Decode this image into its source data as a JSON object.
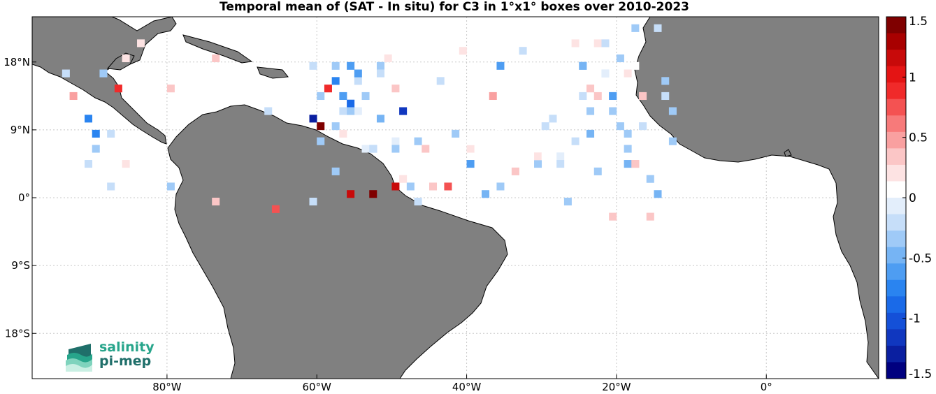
{
  "title": "Temporal mean of (SAT - In situ) for C3 in 1°x1° boxes over 2010-2023",
  "map": {
    "lon_range": [
      -98,
      15
    ],
    "lat_range": [
      -24,
      24
    ],
    "x_ticks": [
      {
        "value": -80,
        "label": "80°W"
      },
      {
        "value": -60,
        "label": "60°W"
      },
      {
        "value": -40,
        "label": "40°W"
      },
      {
        "value": -20,
        "label": "20°W"
      },
      {
        "value": 0,
        "label": "0°"
      }
    ],
    "y_ticks": [
      {
        "value": 18,
        "label": "18°N"
      },
      {
        "value": 9,
        "label": "9°N"
      },
      {
        "value": 0,
        "label": "0°"
      },
      {
        "value": -9,
        "label": "9°S"
      },
      {
        "value": -18,
        "label": "18°S"
      }
    ],
    "grid": true,
    "land_color": "#808080"
  },
  "colorbar": {
    "range": [
      -1.5,
      1.5
    ],
    "ticks": [
      {
        "value": 1.5,
        "label": "1.5"
      },
      {
        "value": 1,
        "label": "1"
      },
      {
        "value": 0.5,
        "label": "0.5"
      },
      {
        "value": 0,
        "label": "0"
      },
      {
        "value": -0.5,
        "label": "-0.5"
      },
      {
        "value": -1,
        "label": "-1"
      },
      {
        "value": -1.5,
        "label": "-1.5"
      }
    ],
    "colors": [
      "#00007f",
      "#0a1fa0",
      "#1037bf",
      "#1450d8",
      "#1a6ae8",
      "#2a84f0",
      "#4e9df2",
      "#76b4f4",
      "#9fcaf7",
      "#c6def9",
      "#e3eefb",
      "#ffffff",
      "#fde3e3",
      "#fbc6c6",
      "#f9a0a0",
      "#f77a7a",
      "#f45252",
      "#f02a2a",
      "#e41414",
      "#c80a0a",
      "#a80000",
      "#7f0000"
    ]
  },
  "logo": {
    "line1": "salinity",
    "line2": "pi-mep"
  },
  "chart_data": {
    "type": "heatmap",
    "title": "Temporal mean of (SAT - In situ) for C3 in 1°x1° boxes over 2010-2023",
    "x_range": [
      -98,
      15
    ],
    "y_range": [
      -24,
      24
    ],
    "value_range": [
      -1.5,
      1.5
    ],
    "cells": [
      [
        -57,
        -0.2
      ],
      [
        -58,
        -0.3
      ],
      [
        -58,
        -0.4
      ],
      [
        -59,
        0.9
      ],
      [
        -57,
        0.2
      ],
      [
        -55,
        -0.1
      ],
      [
        -55,
        0.1
      ],
      [
        -50,
        1.1
      ],
      [
        -40,
        0.2
      ],
      [
        -36,
        0.1
      ],
      [
        -94,
        -0.2
      ],
      [
        -91,
        -0.2
      ],
      [
        -90,
        -0.3
      ],
      [
        -61,
        -0.2
      ],
      [
        -60,
        -0.4
      ],
      [
        -56,
        -0.6
      ],
      [
        -53,
        -0.5
      ],
      [
        -52,
        -0.3
      ],
      [
        -50,
        -0.1
      ],
      [
        -40,
        0.1
      ],
      [
        -86,
        0.2
      ],
      [
        -84,
        0.2
      ],
      [
        -74,
        0.3
      ],
      [
        -66,
        0.7
      ],
      [
        -58,
        -0.8
      ],
      [
        -56,
        -0.9
      ],
      [
        -56,
        1.2
      ],
      [
        -52,
        -0.2
      ],
      [
        -52,
        -0.5
      ],
      [
        -50,
        -0.3
      ],
      [
        -47,
        -0.3
      ],
      [
        -44,
        -0.2
      ],
      [
        -22,
        -0.4
      ],
      [
        -21,
        0.3
      ],
      [
        -19,
        -0.3
      ],
      [
        -18,
        0.1
      ],
      [
        -20,
        -0.3
      ],
      [
        -21,
        -0.2
      ],
      [
        -89,
        -0.3
      ],
      [
        -88,
        -0.2
      ],
      [
        -87,
        0.9
      ],
      [
        -93,
        0.5
      ],
      [
        -74,
        0.3
      ],
      [
        -61,
        -0.2
      ],
      [
        -60,
        -0.3
      ],
      [
        -58,
        -0.4
      ],
      [
        -56,
        -0.3
      ],
      [
        -55,
        -0.2
      ],
      [
        -54,
        -0.1
      ],
      [
        -30,
        -0.2
      ],
      [
        -28,
        -0.1
      ],
      [
        -26,
        -0.2
      ],
      [
        -25,
        -0.3
      ],
      [
        -24,
        0.3
      ],
      [
        -24,
        -0.5
      ],
      [
        -23,
        0.2
      ],
      [
        -22,
        -0.2
      ],
      [
        -21,
        -0.3
      ],
      [
        -19,
        -0.5
      ],
      [
        -18,
        0.3
      ],
      [
        -80,
        -0.3
      ],
      [
        -80,
        0.3
      ],
      [
        -91,
        -0.7
      ],
      [
        -90,
        -0.7
      ],
      [
        -88,
        -0.2
      ],
      [
        -86,
        0.2
      ],
      [
        -67,
        -0.2
      ],
      [
        -61,
        -1.3
      ],
      [
        -57,
        -0.6
      ],
      [
        -54,
        -0.3
      ],
      [
        -53,
        -0.2
      ],
      [
        -51,
        0.2
      ],
      [
        -50,
        0.3
      ],
      [
        -49,
        0.2
      ],
      [
        -47,
        -0.2
      ],
      [
        -45,
        0.4
      ],
      [
        -43,
        0.7
      ],
      [
        -36,
        -0.3
      ],
      [
        -34,
        0.3
      ],
      [
        -31,
        -0.3
      ],
      [
        -29,
        -0.2
      ],
      [
        -26,
        0.2
      ],
      [
        -25,
        -0.2
      ],
      [
        -24,
        -0.4
      ],
      [
        -23,
        0.3
      ],
      [
        -21,
        -0.6
      ],
      [
        -19,
        -0.3
      ],
      [
        -18,
        0.3
      ],
      [
        -17,
        0.4
      ],
      [
        -16,
        0.3
      ],
      [
        -15,
        -0.2
      ],
      [
        -14,
        -0.2
      ],
      [
        -13,
        -0.3
      ],
      [
        -60,
        1.4
      ],
      [
        -55,
        -0.6
      ],
      [
        -53,
        1.5
      ],
      [
        -49,
        -1.1
      ],
      [
        -48,
        -0.3
      ],
      [
        -46,
        0.3
      ],
      [
        -42,
        -0.3
      ],
      [
        -41,
        0.2
      ],
      [
        -40,
        -0.6
      ],
      [
        -38,
        -0.5
      ],
      [
        -37,
        0.5
      ],
      [
        -36,
        -0.6
      ],
      [
        -33,
        -0.2
      ],
      [
        -31,
        0.2
      ],
      [
        -30,
        0.1
      ],
      [
        -28,
        -0.2
      ],
      [
        -27,
        -0.4
      ],
      [
        -25,
        -0.5
      ],
      [
        -23,
        -0.3
      ],
      [
        -22,
        -0.1
      ],
      [
        -20,
        -0.3
      ],
      [
        -19,
        0.2
      ],
      [
        -18,
        -0.3
      ],
      [
        -17,
        -0.2
      ],
      [
        -16,
        -0.4
      ],
      [
        -15,
        -0.5
      ],
      [
        -14,
        -0.3
      ],
      [
        -13,
        -0.4
      ]
    ]
  }
}
